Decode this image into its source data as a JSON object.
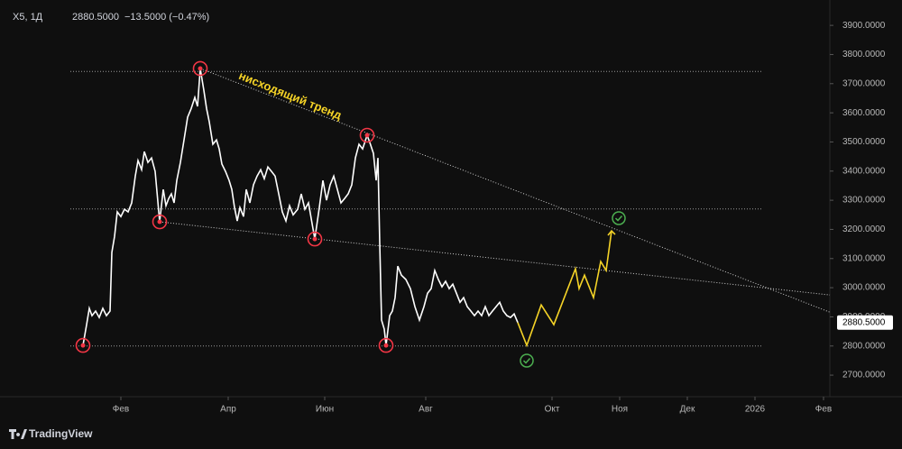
{
  "chart_data": {
    "type": "line",
    "header": {
      "symbol": "X5, 1Д",
      "price": "2880.5000",
      "change": "−13.5000 (−0.47%)"
    },
    "annotation": "нисходящий тренд",
    "footer": "TradingView",
    "last_price": {
      "value": 2880.5,
      "label": "2880.5000"
    },
    "xlim": [
      0,
      460
    ],
    "ylim": [
      2626,
      3987
    ],
    "xticks": [
      {
        "value": 67,
        "label": "Фев"
      },
      {
        "value": 126.5,
        "label": "Апр"
      },
      {
        "value": 180,
        "label": "Июн"
      },
      {
        "value": 236,
        "label": "Авг"
      },
      {
        "value": 306,
        "label": "Окт"
      },
      {
        "value": 343.5,
        "label": "Ноя"
      },
      {
        "value": 381,
        "label": "Дек"
      },
      {
        "value": 418.5,
        "label": "2026"
      },
      {
        "value": 456.5,
        "label": "Фев"
      }
    ],
    "yticks": [
      {
        "value": 2700,
        "label": "2700.0000"
      },
      {
        "value": 2800,
        "label": "2800.0000"
      },
      {
        "value": 2900,
        "label": "2900.0000"
      },
      {
        "value": 3000,
        "label": "3000.0000"
      },
      {
        "value": 3100,
        "label": "3100.0000"
      },
      {
        "value": 3200,
        "label": "3200.0000"
      },
      {
        "value": 3300,
        "label": "3300.0000"
      },
      {
        "value": 3400,
        "label": "3400.0000"
      },
      {
        "value": 3500,
        "label": "3500.0000"
      },
      {
        "value": 3600,
        "label": "3600.0000"
      },
      {
        "value": 3700,
        "label": "3700.0000"
      },
      {
        "value": 3800,
        "label": "3800.0000"
      },
      {
        "value": 3900,
        "label": "3900.0000"
      }
    ],
    "series": [
      {
        "color": "#ffffff",
        "x": [
          46,
          48,
          49.5,
          51,
          53,
          55,
          57,
          59,
          61,
          62,
          63.5,
          65,
          67,
          69,
          71,
          73,
          75,
          76.5,
          78.5,
          80,
          82,
          84,
          86,
          88.5,
          90.5,
          92,
          93.5,
          95,
          96.5,
          98,
          100,
          102,
          104,
          106,
          108,
          109.5,
          111,
          113,
          114.5,
          116,
          118,
          120,
          121.5,
          123,
          125,
          127,
          128.5,
          130,
          131.5,
          133,
          135,
          136.5,
          138.5,
          140.5,
          142.5,
          144.5,
          146.5,
          148.5,
          150.5,
          152.5,
          154.5,
          156.5,
          158.5,
          160.5,
          162.5,
          165,
          167,
          169,
          171,
          173,
          174.5,
          177,
          179,
          181,
          183,
          185,
          187,
          189,
          191,
          193,
          195,
          197,
          199,
          201,
          203.5,
          205,
          207,
          208.5,
          209.5,
          210.5,
          211.5,
          213,
          214,
          216,
          217.5,
          219,
          220.5,
          222.5,
          225,
          227.5,
          230,
          232.5,
          235,
          237,
          239,
          241,
          243,
          245,
          247,
          249,
          251,
          253,
          255,
          257,
          259,
          261,
          263,
          265,
          267,
          269,
          271,
          273,
          275,
          277,
          279,
          281,
          283,
          285,
          287
        ],
        "values": [
          2802,
          2873,
          2929,
          2904,
          2920,
          2898,
          2929,
          2904,
          2920,
          3121,
          3176,
          3260,
          3244,
          3269,
          3260,
          3291,
          3383,
          3436,
          3405,
          3467,
          3430,
          3445,
          3399,
          3226,
          3337,
          3281,
          3306,
          3322,
          3291,
          3368,
          3430,
          3507,
          3585,
          3615,
          3653,
          3622,
          3752,
          3677,
          3615,
          3569,
          3492,
          3507,
          3476,
          3424,
          3399,
          3368,
          3337,
          3275,
          3229,
          3275,
          3244,
          3337,
          3291,
          3353,
          3383,
          3405,
          3374,
          3414,
          3399,
          3383,
          3322,
          3260,
          3229,
          3281,
          3250,
          3269,
          3322,
          3269,
          3291,
          3220,
          3167,
          3275,
          3368,
          3300,
          3353,
          3383,
          3337,
          3291,
          3306,
          3322,
          3353,
          3445,
          3492,
          3476,
          3523,
          3498,
          3461,
          3368,
          3445,
          3151,
          2889,
          2858,
          2802,
          2904,
          2920,
          2966,
          3074,
          3043,
          3028,
          2997,
          2935,
          2889,
          2935,
          2981,
          2997,
          3059,
          3028,
          3003,
          3022,
          2997,
          3012,
          2981,
          2950,
          2966,
          2935,
          2920,
          2904,
          2920,
          2904,
          2935,
          2904,
          2920,
          2935,
          2950,
          2920,
          2904,
          2898,
          2910,
          2880.5
        ]
      },
      {
        "color": "#f5d327",
        "x": [
          287,
          292,
          300,
          307,
          319,
          321,
          324,
          329,
          333,
          336,
          339
        ],
        "values": [
          2880.5,
          2802,
          2941,
          2873,
          3065,
          2997,
          3043,
          2966,
          3090,
          3059,
          3195
        ]
      }
    ],
    "levels": [
      {
        "value": 3742,
        "x": [
          39,
          422.5
        ]
      },
      {
        "value": 3270,
        "x": [
          39,
          422.5
        ]
      },
      {
        "value": 2800,
        "x": [
          39,
          422.5
        ]
      }
    ],
    "trendlines": [
      {
        "x": [
          111,
          460
        ],
        "y": [
          3752,
          2916
        ]
      },
      {
        "x": [
          88.5,
          460
        ],
        "y": [
          3226,
          2975
        ]
      }
    ]
  }
}
